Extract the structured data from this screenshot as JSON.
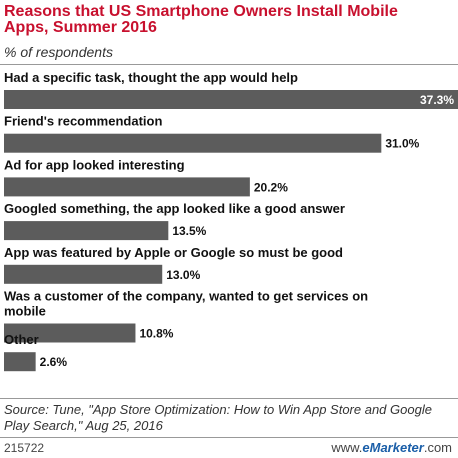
{
  "header": {
    "title": "Reasons that US Smartphone Owners Install Mobile Apps, Summer 2016",
    "subtitle": "% of respondents"
  },
  "chart_data": {
    "type": "bar",
    "orientation": "horizontal",
    "title": "Reasons that US Smartphone Owners Install Mobile Apps, Summer 2016",
    "subtitle": "% of respondents",
    "categories": [
      "Had a specific task, thought the app would help",
      "Friend's recommendation",
      "Ad for app looked interesting",
      "Googled something, the app looked like a good answer",
      "App was featured by Apple or Google so must be good",
      "Was a customer of the company, wanted to get services on mobile",
      "Other"
    ],
    "values": [
      37.3,
      31.0,
      20.2,
      13.5,
      13.0,
      10.8,
      2.6
    ],
    "value_labels": [
      "37.3%",
      "31.0%",
      "20.2%",
      "13.5%",
      "13.0%",
      "10.8%",
      "2.6%"
    ],
    "xlim": [
      0,
      37.3
    ],
    "bar_color": "#5c5c5c",
    "grid": false,
    "legend": "none"
  },
  "footer": {
    "source": "Source: Tune, \"App Store Optimization: How to Win App Store and Google Play Search,\" Aug 25, 2016",
    "chart_id": "215722",
    "site_prefix": "www.",
    "site_brand": "eMarketer",
    "site_suffix": ".com"
  },
  "colors": {
    "title": "#c8102e",
    "brand": "#1a5ea8"
  }
}
